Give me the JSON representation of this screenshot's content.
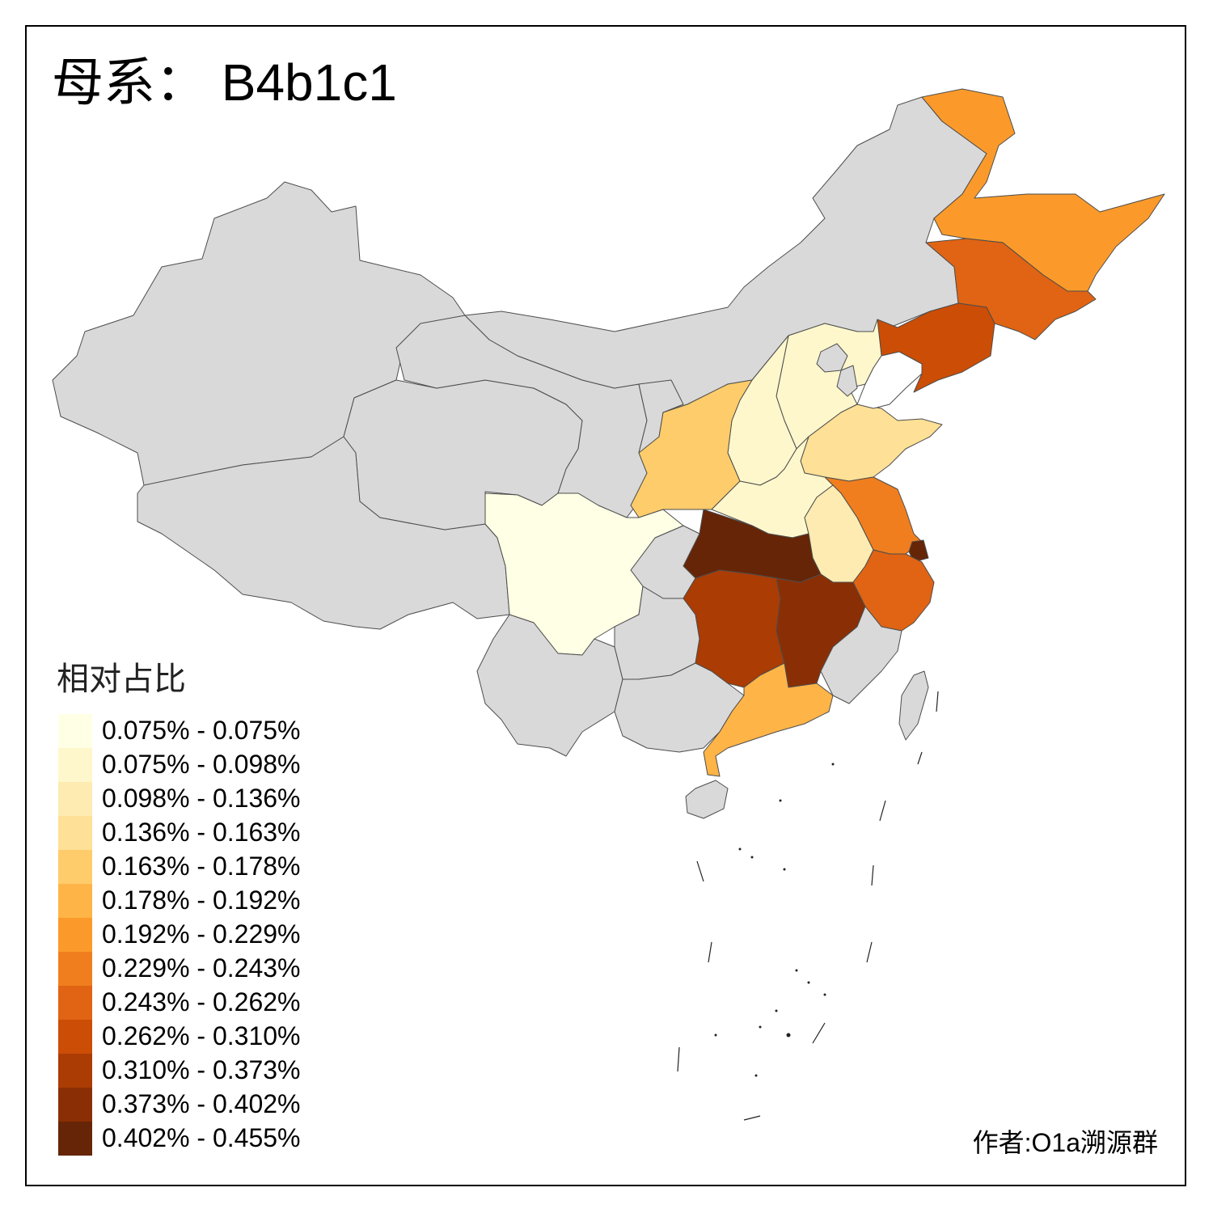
{
  "title": "母系： B4b1c1",
  "legend": {
    "title": "相对占比",
    "items": [
      {
        "label": "0.075% - 0.075%",
        "color": "#FFFFE5"
      },
      {
        "label": "0.075% - 0.098%",
        "color": "#FFF7CC"
      },
      {
        "label": "0.098% - 0.136%",
        "color": "#FEEBB1"
      },
      {
        "label": "0.136% - 0.163%",
        "color": "#FEE096"
      },
      {
        "label": "0.163% - 0.178%",
        "color": "#FECC6A"
      },
      {
        "label": "0.178% - 0.192%",
        "color": "#FEB447"
      },
      {
        "label": "0.192% - 0.229%",
        "color": "#FB9A2A"
      },
      {
        "label": "0.229% - 0.243%",
        "color": "#F07E1E"
      },
      {
        "label": "0.243% - 0.262%",
        "color": "#E06413"
      },
      {
        "label": "0.262% - 0.310%",
        "color": "#CB4D06"
      },
      {
        "label": "0.310% - 0.373%",
        "color": "#AB3C04"
      },
      {
        "label": "0.373% - 0.402%",
        "color": "#8A2F05"
      },
      {
        "label": "0.402% - 0.455%",
        "color": "#662506"
      }
    ]
  },
  "no_data_color": "#D9D9D9",
  "credit": "作者:O1a溯源群"
}
